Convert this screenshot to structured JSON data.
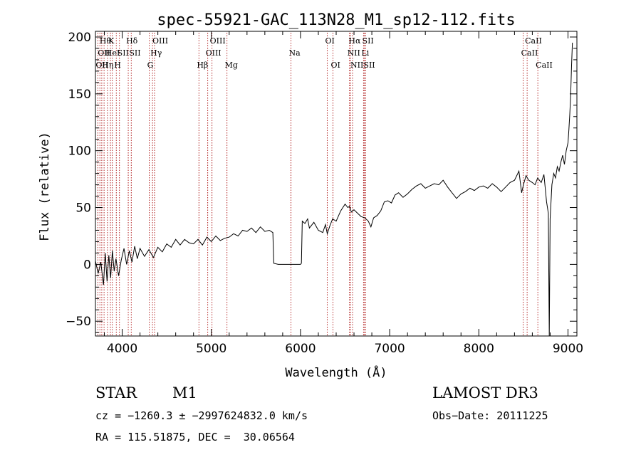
{
  "chart_data": {
    "type": "line",
    "title": "spec-55921-GAC_113N28_M1_sp12-112.fits",
    "xlabel": "Wavelength (Å)",
    "ylabel": "Flux (relative)",
    "xlim": [
      3700,
      9100
    ],
    "ylim": [
      -63,
      205
    ],
    "xticks": [
      4000,
      5000,
      6000,
      7000,
      8000,
      9000
    ],
    "yticks": [
      -50,
      0,
      50,
      100,
      150,
      200
    ],
    "grid": false,
    "line_color": "#000000",
    "marker_color": "#b22222",
    "spectrum": [
      [
        3700,
        3
      ],
      [
        3730,
        -8
      ],
      [
        3760,
        2
      ],
      [
        3790,
        -18
      ],
      [
        3810,
        10
      ],
      [
        3830,
        -15
      ],
      [
        3850,
        8
      ],
      [
        3870,
        -12
      ],
      [
        3890,
        12
      ],
      [
        3910,
        -6
      ],
      [
        3930,
        5
      ],
      [
        3960,
        -10
      ],
      [
        3990,
        4
      ],
      [
        4020,
        14
      ],
      [
        4050,
        0
      ],
      [
        4080,
        12
      ],
      [
        4110,
        2
      ],
      [
        4140,
        16
      ],
      [
        4170,
        5
      ],
      [
        4200,
        14
      ],
      [
        4250,
        7
      ],
      [
        4300,
        13
      ],
      [
        4350,
        6
      ],
      [
        4400,
        15
      ],
      [
        4450,
        11
      ],
      [
        4500,
        18
      ],
      [
        4550,
        15
      ],
      [
        4600,
        22
      ],
      [
        4650,
        17
      ],
      [
        4700,
        22
      ],
      [
        4750,
        19
      ],
      [
        4800,
        18
      ],
      [
        4850,
        22
      ],
      [
        4900,
        17
      ],
      [
        4950,
        24
      ],
      [
        5000,
        20
      ],
      [
        5050,
        25
      ],
      [
        5100,
        21
      ],
      [
        5150,
        23
      ],
      [
        5200,
        24
      ],
      [
        5250,
        27
      ],
      [
        5300,
        25
      ],
      [
        5350,
        30
      ],
      [
        5400,
        29
      ],
      [
        5450,
        32
      ],
      [
        5500,
        28
      ],
      [
        5550,
        33
      ],
      [
        5600,
        29
      ],
      [
        5650,
        30
      ],
      [
        5690,
        28
      ],
      [
        5700,
        1
      ],
      [
        5750,
        0
      ],
      [
        5800,
        0
      ],
      [
        5850,
        0
      ],
      [
        5900,
        0
      ],
      [
        5950,
        0
      ],
      [
        6000,
        0
      ],
      [
        6010,
        1
      ],
      [
        6020,
        38
      ],
      [
        6050,
        36
      ],
      [
        6080,
        40
      ],
      [
        6100,
        32
      ],
      [
        6150,
        37
      ],
      [
        6200,
        30
      ],
      [
        6250,
        28
      ],
      [
        6280,
        35
      ],
      [
        6300,
        27
      ],
      [
        6330,
        34
      ],
      [
        6360,
        40
      ],
      [
        6400,
        38
      ],
      [
        6450,
        47
      ],
      [
        6500,
        53
      ],
      [
        6530,
        50
      ],
      [
        6550,
        51
      ],
      [
        6570,
        46
      ],
      [
        6600,
        48
      ],
      [
        6640,
        45
      ],
      [
        6680,
        42
      ],
      [
        6720,
        41
      ],
      [
        6760,
        38
      ],
      [
        6790,
        33
      ],
      [
        6820,
        41
      ],
      [
        6860,
        43
      ],
      [
        6900,
        47
      ],
      [
        6940,
        55
      ],
      [
        6980,
        56
      ],
      [
        7020,
        54
      ],
      [
        7060,
        61
      ],
      [
        7100,
        63
      ],
      [
        7150,
        59
      ],
      [
        7200,
        62
      ],
      [
        7250,
        66
      ],
      [
        7300,
        69
      ],
      [
        7350,
        71
      ],
      [
        7400,
        67
      ],
      [
        7450,
        69
      ],
      [
        7500,
        71
      ],
      [
        7550,
        70
      ],
      [
        7600,
        74
      ],
      [
        7650,
        68
      ],
      [
        7700,
        63
      ],
      [
        7750,
        58
      ],
      [
        7800,
        62
      ],
      [
        7850,
        64
      ],
      [
        7900,
        67
      ],
      [
        7950,
        65
      ],
      [
        8000,
        68
      ],
      [
        8050,
        69
      ],
      [
        8100,
        67
      ],
      [
        8150,
        71
      ],
      [
        8200,
        68
      ],
      [
        8250,
        64
      ],
      [
        8300,
        68
      ],
      [
        8350,
        72
      ],
      [
        8400,
        74
      ],
      [
        8450,
        82
      ],
      [
        8480,
        63
      ],
      [
        8500,
        70
      ],
      [
        8530,
        78
      ],
      [
        8560,
        74
      ],
      [
        8600,
        72
      ],
      [
        8630,
        70
      ],
      [
        8660,
        76
      ],
      [
        8700,
        72
      ],
      [
        8730,
        79
      ],
      [
        8760,
        55
      ],
      [
        8780,
        45
      ],
      [
        8790,
        -63
      ],
      [
        8800,
        40
      ],
      [
        8820,
        70
      ],
      [
        8840,
        80
      ],
      [
        8860,
        76
      ],
      [
        8880,
        86
      ],
      [
        8900,
        82
      ],
      [
        8920,
        90
      ],
      [
        8940,
        96
      ],
      [
        8960,
        88
      ],
      [
        8980,
        100
      ],
      [
        9000,
        107
      ],
      [
        9010,
        118
      ],
      [
        9020,
        132
      ],
      [
        9030,
        148
      ],
      [
        9040,
        175
      ],
      [
        9050,
        195
      ]
    ],
    "lines": [
      {
        "wl": 3727,
        "label": "OII",
        "row": 2,
        "align": "start"
      },
      {
        "wl": 3750,
        "label": "OII",
        "row": 1,
        "align": "start"
      },
      {
        "wl": 3771,
        "label": "Hθ",
        "row": 0,
        "align": "start"
      },
      {
        "wl": 3797,
        "label": "Hη",
        "row": 2,
        "align": "start"
      },
      {
        "wl": 3835,
        "label": "HeI",
        "row": 1,
        "align": "start"
      },
      {
        "wl": 3868,
        "label": "K",
        "row": 0,
        "align": "start"
      },
      {
        "wl": 3889,
        "label": "",
        "row": 0,
        "align": "start"
      },
      {
        "wl": 3934,
        "label": "H",
        "row": 2,
        "align": "start"
      },
      {
        "wl": 3969,
        "label": "SII",
        "row": 1,
        "align": "start"
      },
      {
        "wl": 4068,
        "label": "Hδ",
        "row": 0,
        "align": "start"
      },
      {
        "wl": 4102,
        "label": "SII",
        "row": 1,
        "align": "start"
      },
      {
        "wl": 4304,
        "label": "G",
        "row": 2,
        "align": "start"
      },
      {
        "wl": 4340,
        "label": "Hγ",
        "row": 1,
        "align": "start"
      },
      {
        "wl": 4363,
        "label": "OIII",
        "row": 0,
        "align": "start"
      },
      {
        "wl": 4861,
        "label": "Hβ",
        "row": 2,
        "align": "start"
      },
      {
        "wl": 4959,
        "label": "OIII",
        "row": 1,
        "align": "start"
      },
      {
        "wl": 5007,
        "label": "OIII",
        "row": 0,
        "align": "start"
      },
      {
        "wl": 5175,
        "label": "Mg",
        "row": 2,
        "align": "start"
      },
      {
        "wl": 5893,
        "label": "Na",
        "row": 1,
        "align": "start"
      },
      {
        "wl": 6300,
        "label": "OI",
        "row": 0,
        "align": "start"
      },
      {
        "wl": 6364,
        "label": "OI",
        "row": 2,
        "align": "start"
      },
      {
        "wl": 6548,
        "label": "NII",
        "row": 1,
        "align": "start"
      },
      {
        "wl": 6563,
        "label": "Hα",
        "row": 0,
        "align": "start"
      },
      {
        "wl": 6584,
        "label": "NII",
        "row": 2,
        "align": "start"
      },
      {
        "wl": 6707,
        "label": "Li",
        "row": 1,
        "align": "start"
      },
      {
        "wl": 6716,
        "label": "SII",
        "row": 0,
        "align": "start"
      },
      {
        "wl": 6731,
        "label": "SII",
        "row": 2,
        "align": "start"
      },
      {
        "wl": 8498,
        "label": "CaII",
        "row": 1,
        "align": "start"
      },
      {
        "wl": 8542,
        "label": "CaII",
        "row": 0,
        "align": "start"
      },
      {
        "wl": 8662,
        "label": "CaII",
        "row": 2,
        "align": "start"
      }
    ]
  },
  "info": {
    "class": "STAR",
    "subclass": "M1",
    "survey": "LAMOST DR3",
    "cz": "cz = −1260.3 ± −2997624832.0 km/s",
    "obsdate": "Obs−Date: 20111225",
    "radec": "RA = 115.51875, DEC =  30.06564"
  }
}
